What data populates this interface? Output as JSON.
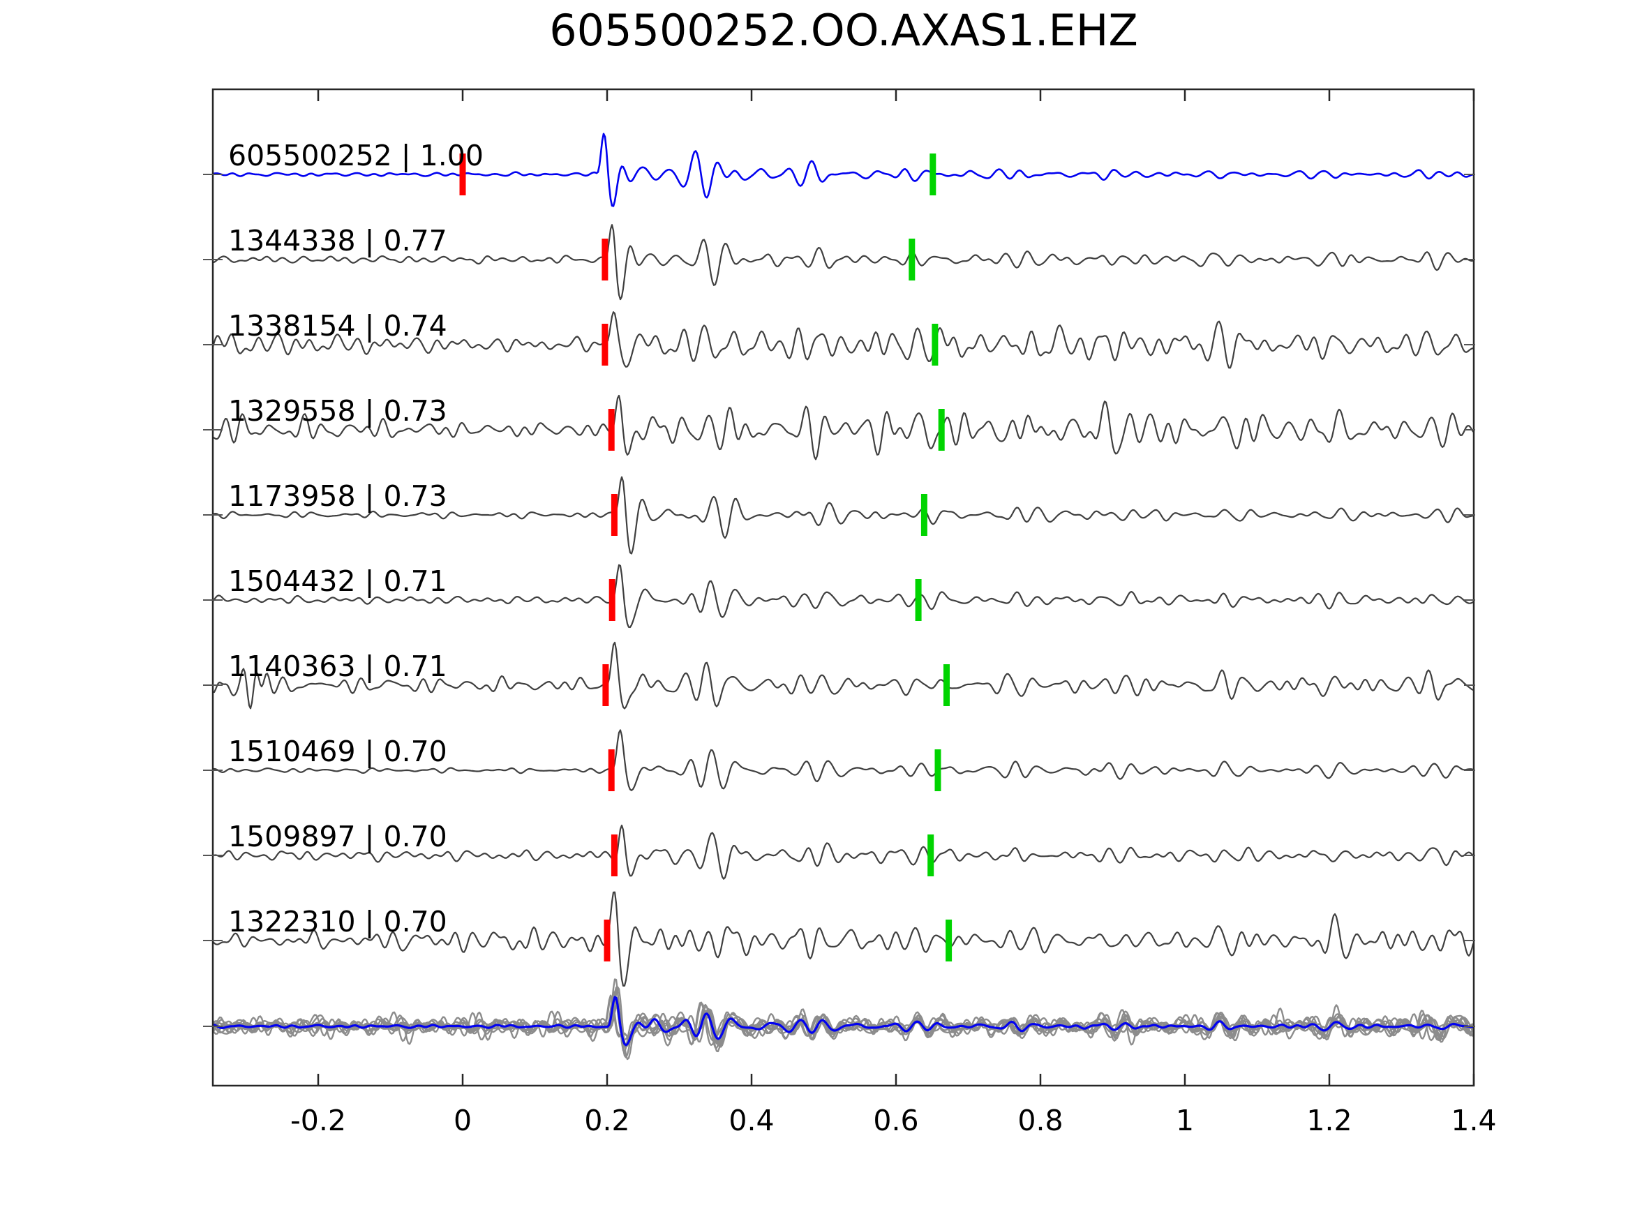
{
  "chart_data": {
    "type": "line",
    "title": "605500252.OO.AXAS1.EHZ",
    "xlabel": "",
    "ylabel": "",
    "xlim": [
      -0.346,
      1.4
    ],
    "grid": false,
    "legend": "none",
    "xticks": [
      -0.2,
      0,
      0.2,
      0.4,
      0.6,
      0.8,
      1,
      1.2,
      1.4
    ],
    "xtick_labels": [
      "-0.2",
      "0",
      "0.2",
      "0.4",
      "0.6",
      "0.8",
      "1",
      "1.2",
      "1.4"
    ],
    "colors": {
      "template_trace": "#0202f0",
      "detection_trace": "#3f3f3f",
      "stack_member": "#8c8c8c",
      "stack_mean": "#0202f0",
      "red_pick_marker": "#ff0000",
      "green_pick_marker": "#00d400",
      "axis": "#262626",
      "text": "#000000"
    },
    "traces": [
      {
        "id": "605500252",
        "correlation": 1.0,
        "label": "605500252 | 1.00",
        "is_template": true,
        "red_pick": 0.0,
        "green_pick": 0.651,
        "onset": 0.185,
        "noise": 2.5,
        "amp": 80,
        "coda": 11,
        "tail": 5,
        "mod": 0,
        "edge": 0,
        "seed": 3
      },
      {
        "id": "1344338",
        "correlation": 0.77,
        "label": "1344338 | 0.77",
        "is_template": false,
        "red_pick": 0.197,
        "green_pick": 0.622,
        "onset": 0.197,
        "noise": 5,
        "amp": 74,
        "coda": 15,
        "tail": 8,
        "mod": 0,
        "edge": 0,
        "seed": 7
      },
      {
        "id": "1338154",
        "correlation": 0.74,
        "label": "1338154 | 0.74",
        "is_template": false,
        "red_pick": 0.197,
        "green_pick": 0.654,
        "onset": 0.197,
        "noise": 15,
        "amp": 66,
        "coda": 20,
        "tail": 16,
        "mod": 0.4,
        "edge": 0,
        "seed": 12
      },
      {
        "id": "1329558",
        "correlation": 0.73,
        "label": "1329558 | 0.73",
        "is_template": false,
        "red_pick": 0.206,
        "green_pick": 0.663,
        "onset": 0.206,
        "noise": 17,
        "amp": 64,
        "coda": 21,
        "tail": 19,
        "mod": 0.45,
        "edge": 0,
        "seed": 19
      },
      {
        "id": "1173958",
        "correlation": 0.73,
        "label": "1173958 | 0.73",
        "is_template": false,
        "red_pick": 0.21,
        "green_pick": 0.639,
        "onset": 0.21,
        "noise": 4,
        "amp": 72,
        "coda": 17,
        "tail": 7,
        "mod": 0,
        "edge": 0,
        "seed": 23
      },
      {
        "id": "1504432",
        "correlation": 0.71,
        "label": "1504432 | 0.71",
        "is_template": false,
        "red_pick": 0.207,
        "green_pick": 0.631,
        "onset": 0.207,
        "noise": 5,
        "amp": 70,
        "coda": 15,
        "tail": 7,
        "mod": 0,
        "edge": 0,
        "seed": 31
      },
      {
        "id": "1140363",
        "correlation": 0.71,
        "label": "1140363 | 0.71",
        "is_template": false,
        "red_pick": 0.198,
        "green_pick": 0.67,
        "onset": 0.198,
        "noise": 8,
        "amp": 70,
        "coda": 16,
        "tail": 12,
        "mod": 0.3,
        "edge": 30,
        "seed": 41
      },
      {
        "id": "1510469",
        "correlation": 0.7,
        "label": "1510469 | 0.70",
        "is_template": false,
        "red_pick": 0.206,
        "green_pick": 0.658,
        "onset": 0.206,
        "noise": 3,
        "amp": 72,
        "coda": 17,
        "tail": 9,
        "mod": 0,
        "edge": 0,
        "seed": 47
      },
      {
        "id": "1509897",
        "correlation": 0.7,
        "label": "1509897 | 0.70",
        "is_template": false,
        "red_pick": 0.21,
        "green_pick": 0.648,
        "onset": 0.21,
        "noise": 7,
        "amp": 70,
        "coda": 15,
        "tail": 7,
        "mod": 0,
        "edge": 0,
        "seed": 53
      },
      {
        "id": "1322310",
        "correlation": 0.7,
        "label": "1322310 | 0.70",
        "is_template": false,
        "red_pick": 0.2,
        "green_pick": 0.673,
        "onset": 0.2,
        "noise": 13,
        "amp": 66,
        "coda": 21,
        "tail": 14,
        "mod": 0.4,
        "edge": 0,
        "seed": 61
      }
    ],
    "stack": {
      "description": "overlay of detection waveforms (grey) with mean stack (blue)",
      "members": 9,
      "onset": 0.2,
      "member_noise": 11,
      "member_amp": 56,
      "mean_noise": 2,
      "mean_amp": 52,
      "coda": 15,
      "tail": 10,
      "seed": 500
    }
  }
}
